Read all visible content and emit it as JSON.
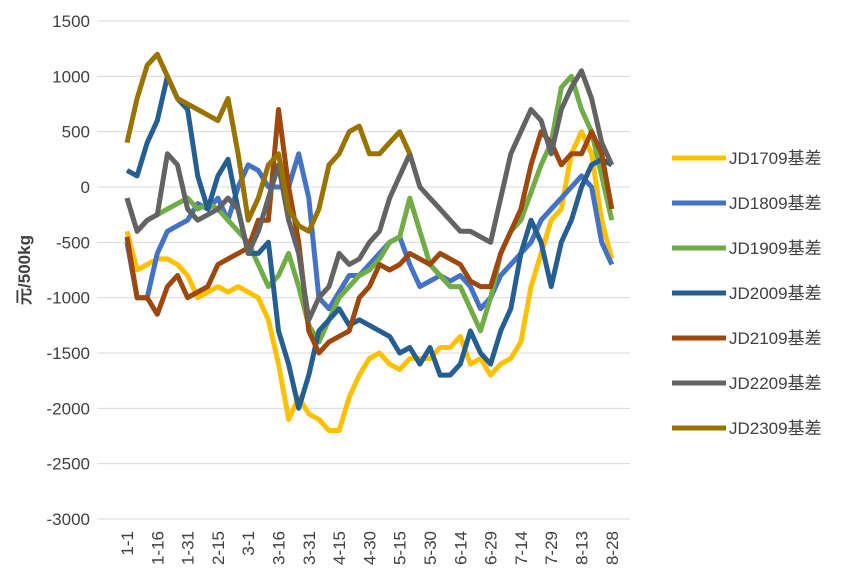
{
  "chart_data": {
    "type": "line",
    "y_label": "元/500kg",
    "categories": [
      "1-1",
      null,
      null,
      "1-16",
      null,
      null,
      "1-31",
      null,
      null,
      "2-15",
      null,
      null,
      "3-1",
      null,
      null,
      "3-16",
      null,
      null,
      "3-31",
      null,
      null,
      "4-15",
      null,
      null,
      "4-30",
      null,
      null,
      "5-15",
      null,
      null,
      "5-30",
      null,
      null,
      "6-14",
      null,
      null,
      "6-29",
      null,
      null,
      "7-14",
      null,
      null,
      "7-29",
      null,
      null,
      "8-13",
      null,
      null,
      "8-28"
    ],
    "ylim": [
      -3000,
      1500
    ],
    "yticks": [
      -3000,
      -2500,
      -2000,
      -1500,
      -1000,
      -500,
      0,
      500,
      1000,
      1500
    ],
    "grid": true,
    "legend": "right",
    "series": [
      {
        "name": "JD1709基差",
        "color": "#ffc000",
        "values": [
          -400,
          -750,
          -700,
          -650,
          -650,
          -700,
          -800,
          -1000,
          -950,
          -900,
          -950,
          -900,
          -950,
          -1000,
          -1200,
          -1600,
          -2100,
          -1900,
          -2050,
          -2100,
          -2200,
          -2200,
          -1900,
          -1700,
          -1550,
          -1500,
          -1600,
          -1650,
          -1550,
          -1550,
          -1550,
          -1450,
          -1450,
          -1350,
          -1600,
          -1550,
          -1700,
          -1600,
          -1550,
          -1400,
          -900,
          -600,
          -300,
          -200,
          300,
          500,
          300,
          -300,
          -650
        ]
      },
      {
        "name": "JD1809基差",
        "color": "#4472c4",
        "values": [
          -500,
          -1000,
          -1000,
          -600,
          -400,
          -350,
          -300,
          -150,
          -200,
          -100,
          -300,
          0,
          200,
          150,
          0,
          0,
          0,
          300,
          -100,
          -1000,
          -1100,
          -950,
          -800,
          -800,
          -700,
          -600,
          -500,
          -450,
          -700,
          -900,
          -850,
          -800,
          -850,
          -800,
          -900,
          -1100,
          -1000,
          -800,
          -700,
          -600,
          -500,
          -300,
          -200,
          -100,
          0,
          100,
          0,
          -500,
          -700
        ]
      },
      {
        "name": "JD1909基差",
        "color": "#70ad47",
        "values": [
          -100,
          -400,
          -300,
          -250,
          -200,
          -150,
          -100,
          -200,
          -150,
          -200,
          -300,
          -400,
          -500,
          -700,
          -900,
          -800,
          -600,
          -900,
          -1250,
          -1400,
          -1200,
          -1000,
          -900,
          -800,
          -750,
          -650,
          -500,
          -450,
          -100,
          -400,
          -700,
          -800,
          -900,
          -900,
          -1100,
          -1300,
          -1000,
          -600,
          -400,
          -300,
          -50,
          200,
          400,
          900,
          1000,
          700,
          500,
          100,
          -300
        ]
      },
      {
        "name": "JD2009基差",
        "color": "#255e91",
        "values": [
          150,
          100,
          400,
          600,
          1000,
          800,
          700,
          100,
          -200,
          100,
          250,
          -200,
          -600,
          -600,
          -500,
          -1300,
          -1600,
          -2000,
          -1700,
          -1300,
          -1200,
          -1100,
          -1250,
          -1200,
          -1250,
          -1300,
          -1350,
          -1500,
          -1450,
          -1600,
          -1450,
          -1700,
          -1700,
          -1600,
          -1300,
          -1500,
          -1600,
          -1300,
          -1100,
          -600,
          -300,
          -500,
          -900,
          -500,
          -300,
          0,
          200,
          250,
          200
        ]
      },
      {
        "name": "JD2109基差",
        "color": "#9e480e",
        "values": [
          -450,
          -1000,
          -1000,
          -1150,
          -900,
          -800,
          -1000,
          -950,
          -900,
          -700,
          -650,
          -600,
          -550,
          -300,
          -300,
          700,
          0,
          -500,
          -1300,
          -1500,
          -1400,
          -1350,
          -1300,
          -1000,
          -900,
          -700,
          -750,
          -700,
          -600,
          -650,
          -700,
          -600,
          -650,
          -700,
          -850,
          -900,
          -900,
          -600,
          -400,
          -200,
          200,
          500,
          400,
          200,
          300,
          300,
          500,
          300,
          -200
        ]
      },
      {
        "name": "JD2209基差",
        "color": "#636363",
        "values": [
          -100,
          -400,
          -300,
          -250,
          300,
          200,
          -200,
          -300,
          -250,
          -200,
          -100,
          -200,
          -600,
          -400,
          -100,
          200,
          -300,
          -600,
          -1200,
          -1000,
          -900,
          -600,
          -700,
          -650,
          -500,
          -400,
          -100,
          100,
          300,
          0,
          -100,
          -200,
          -300,
          -400,
          -400,
          -450,
          -500,
          -100,
          300,
          500,
          700,
          600,
          300,
          700,
          900,
          1050,
          800,
          400,
          200
        ]
      },
      {
        "name": "JD2309基差",
        "color": "#997300",
        "values": [
          400,
          800,
          1100,
          1200,
          1000,
          800,
          750,
          700,
          650,
          600,
          800,
          300,
          -300,
          -100,
          200,
          300,
          -200,
          -350,
          -400,
          -200,
          200,
          300,
          500,
          550,
          300,
          300,
          400,
          500,
          300,
          null,
          null,
          null,
          null,
          null,
          null,
          null,
          null,
          null,
          null,
          null,
          null,
          null,
          null,
          null,
          null,
          null,
          null,
          null,
          null
        ]
      }
    ]
  }
}
